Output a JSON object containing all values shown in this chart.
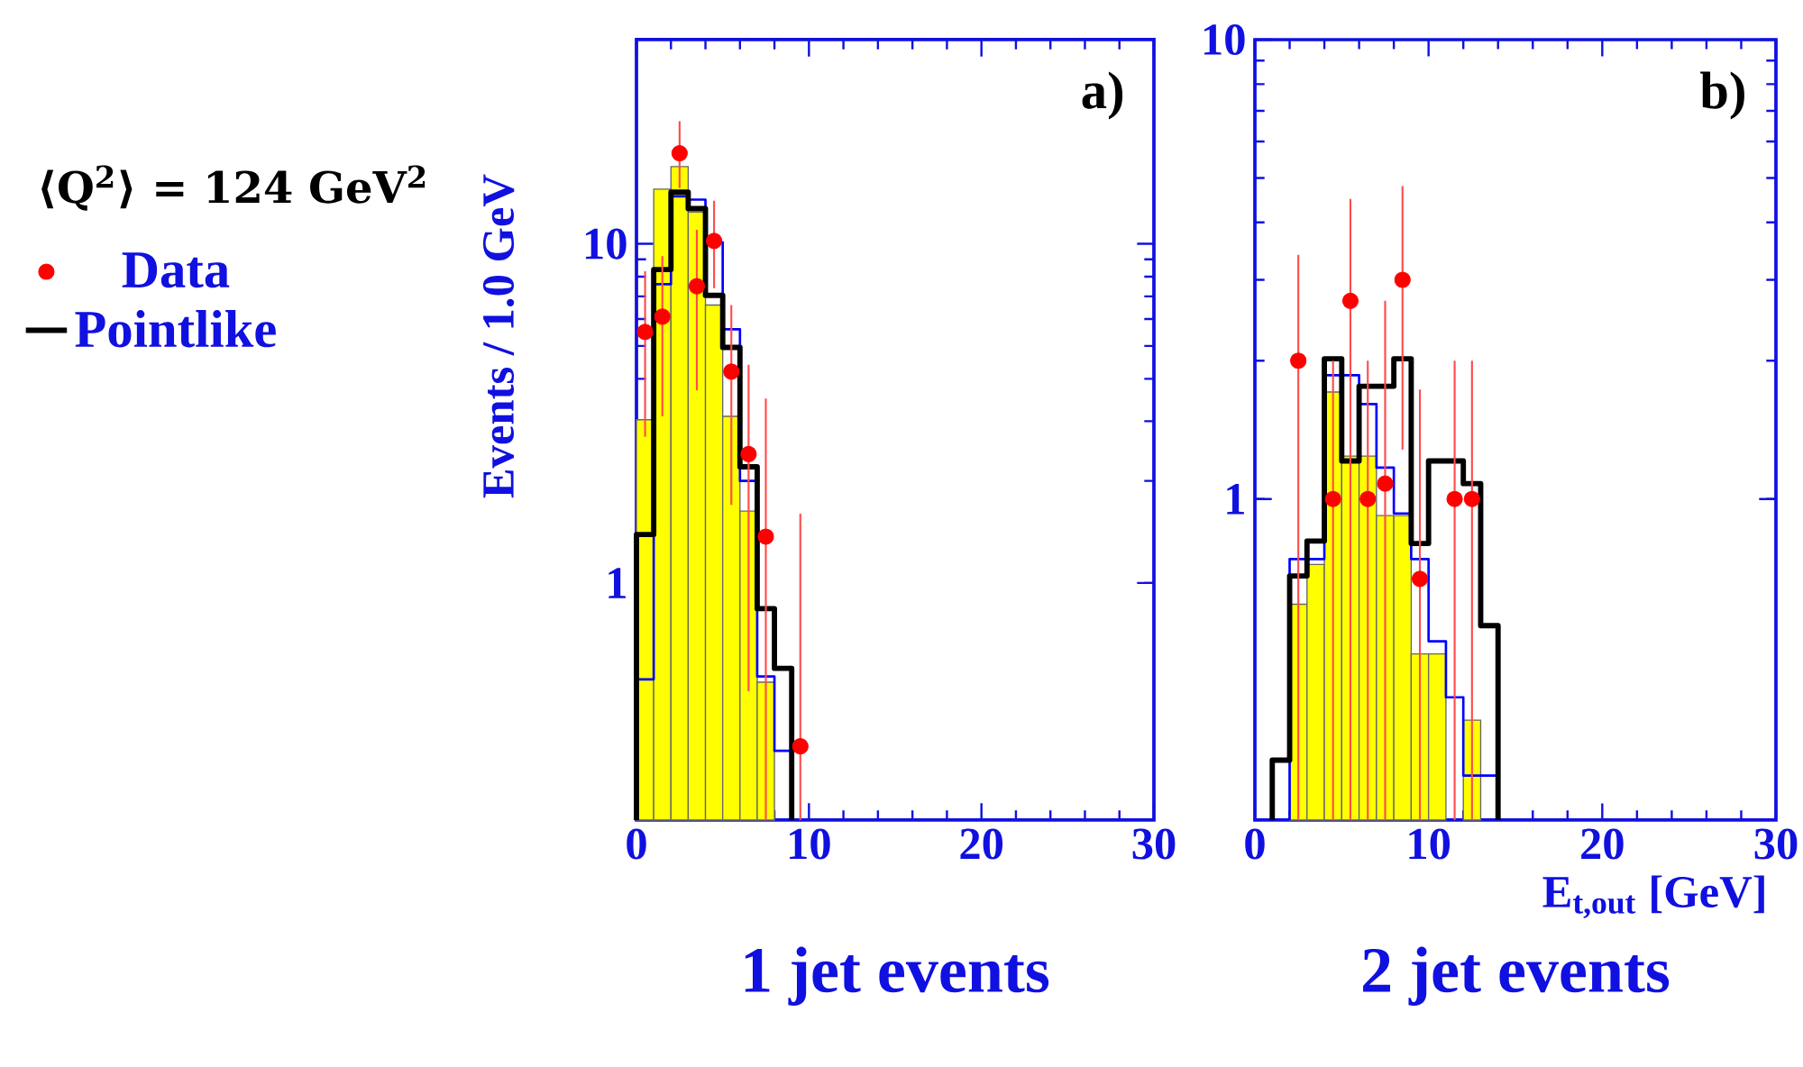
{
  "chart_data": [
    {
      "type": "histogram",
      "title": "1 jet events",
      "ylabel": "Events / 1.0 GeV",
      "annotations": [
        "⟨Q$^{2}$⟩ = 124 GeV$^{2}$",
        "a)"
      ],
      "bins": [
        0,
        1,
        2,
        3,
        4,
        5,
        6,
        7,
        8,
        9
      ],
      "xlim": [
        0,
        30
      ],
      "ylim": [
        0.2,
        40
      ],
      "xticks": [
        0,
        10,
        20,
        30
      ],
      "yticks": [
        1,
        10
      ],
      "log": "y",
      "legend": "left",
      "series": [
        {
          "color": "#ffff00",
          "values": [
            3.03,
            14.5,
            16.9,
            12.4,
            6.6,
            3.1,
            1.63,
            0.51,
            null
          ]
        },
        {
          "color": "#0000ff",
          "values": [
            0.52,
            7.6,
            13.8,
            13.5,
            10.1,
            5.6,
            2.0,
            0.53,
            0.32
          ]
        },
        {
          "name": "Pointlike",
          "color": "#000000",
          "values": [
            1.39,
            8.4,
            14.2,
            12.7,
            7.05,
            4.95,
            2.2,
            0.84,
            0.56
          ]
        },
        {
          "type": "scatter",
          "name": "Data",
          "color": "#ff0000",
          "x": [
            0.5,
            1.5,
            2.5,
            3.5,
            4.5,
            5.5,
            6.5,
            7.5,
            9.5
          ],
          "values": [
            5.5,
            6.1,
            18.5,
            7.5,
            10.2,
            4.2,
            2.4,
            1.37,
            0.33
          ],
          "errors": [
            [
              2.7,
              8.3
            ],
            [
              3.1,
              9.2
            ],
            [
              14.6,
              23
            ],
            [
              3.7,
              11
            ],
            [
              7.4,
              13.4
            ],
            [
              1.7,
              6.6
            ],
            [
              0.48,
              4.4
            ],
            [
              0.2,
              3.5
            ],
            [
              0.2,
              1.6
            ]
          ]
        }
      ]
    },
    {
      "type": "histogram",
      "title": "2 jet events",
      "xlabel": "E$_{t,out}$ [GeV]",
      "annotations": [
        "b)"
      ],
      "bins": [
        0,
        1,
        2,
        3,
        4,
        5,
        6,
        7,
        8,
        9,
        10,
        11,
        12,
        13,
        14
      ],
      "xlim": [
        0,
        30
      ],
      "ylim": [
        0.2,
        10
      ],
      "xticks": [
        0,
        10,
        20,
        30
      ],
      "yticks": [
        1,
        10
      ],
      "log": "y",
      "series": [
        {
          "color": "#ffff00",
          "values": [
            null,
            null,
            0.59,
            0.72,
            1.71,
            1.24,
            1.24,
            0.92,
            0.92,
            0.46,
            0.46,
            null,
            0.33,
            null
          ]
        },
        {
          "color": "#0000ff",
          "bins": [
            2,
            3,
            4,
            5,
            6,
            7,
            8,
            9,
            10,
            11,
            12,
            13,
            14
          ],
          "values": [
            0.74,
            0.74,
            1.86,
            1.86,
            1.61,
            1.17,
            0.93,
            0.74,
            0.49,
            0.37,
            0.25,
            0.25
          ]
        },
        {
          "color": "#000000",
          "bins": [
            1,
            2,
            3,
            4,
            5,
            6,
            7,
            8,
            9,
            10,
            11,
            12,
            13,
            14
          ],
          "values": [
            0.27,
            0.68,
            0.81,
            2.02,
            1.21,
            1.76,
            1.76,
            2.02,
            0.8,
            1.21,
            1.21,
            1.08,
            0.53
          ]
        },
        {
          "type": "scatter",
          "color": "#ff0000",
          "x": [
            2.5,
            4.5,
            5.5,
            6.5,
            7.5,
            8.5,
            9.5,
            11.5,
            12.5
          ],
          "values": [
            2.0,
            1.0,
            2.7,
            1.0,
            1.08,
            3.0,
            0.67,
            1.0,
            1.0
          ],
          "errors": [
            [
              0.2,
              3.4
            ],
            [
              0.2,
              2.0
            ],
            [
              0.2,
              4.5
            ],
            [
              0.2,
              2.0
            ],
            [
              0.2,
              2.7
            ],
            [
              1.28,
              4.8
            ],
            [
              0.2,
              1.73
            ],
            [
              0.2,
              2.0
            ],
            [
              0.2,
              2.0
            ]
          ]
        }
      ]
    }
  ]
}
